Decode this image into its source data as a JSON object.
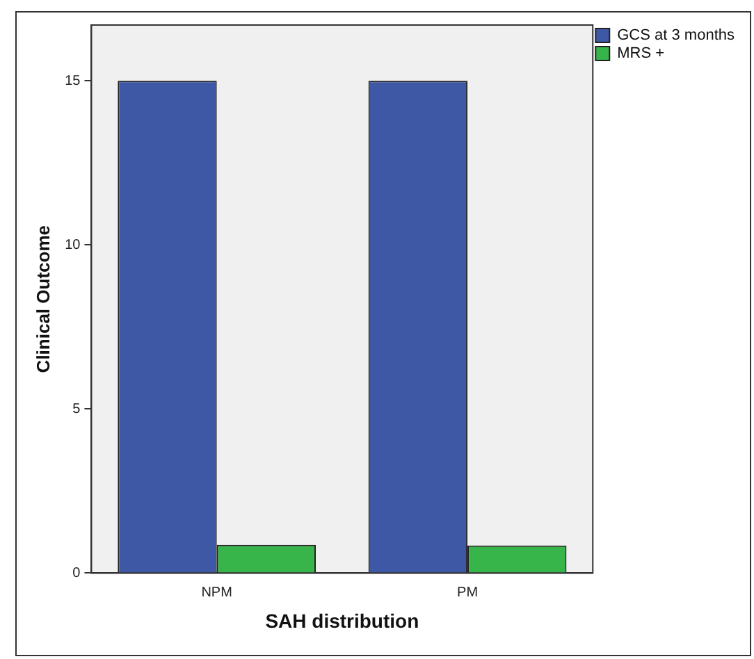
{
  "chart_data": {
    "type": "bar",
    "xlabel": "SAH distribution",
    "ylabel": "Clinical Outcome",
    "categories": [
      "NPM",
      "PM"
    ],
    "series": [
      {
        "name": "GCS at 3 months",
        "color": "#3f58a6",
        "values": [
          15,
          15
        ]
      },
      {
        "name": "MRS +",
        "color": "#38b54a",
        "values": [
          0.86,
          0.84
        ]
      }
    ],
    "ylim": [
      0,
      16.7
    ],
    "yticks": [
      0,
      5,
      10,
      15
    ],
    "grid": false,
    "legend": "top right"
  }
}
